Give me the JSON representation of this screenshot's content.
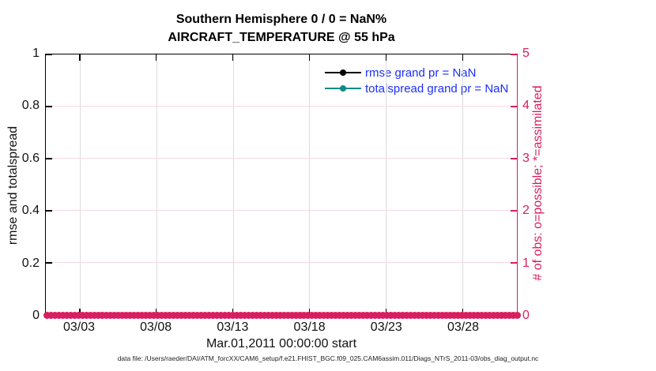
{
  "header": {
    "title_line1": "Southern Hemisphere 0 / 0 = NaN%",
    "title_line2": "AIRCRAFT_TEMPERATURE @ 55 hPa"
  },
  "axes": {
    "x": {
      "tick_labels": [
        "03/03",
        "03/08",
        "03/13",
        "03/18",
        "03/23",
        "03/28"
      ],
      "label": "Mar.01,2011 00:00:00 start"
    },
    "y_left": {
      "tick_labels": [
        "0",
        "0.2",
        "0.4",
        "0.6",
        "0.8",
        "1"
      ],
      "label": "rmse and totalspread",
      "range": [
        0,
        1
      ]
    },
    "y_right": {
      "tick_labels": [
        "0",
        "1",
        "2",
        "3",
        "4",
        "5"
      ],
      "label": "# of obs: o=possible; *=assimilated",
      "range": [
        0,
        5
      ]
    }
  },
  "legend": {
    "text_color": "#1b2eff",
    "items": [
      {
        "label": "rmse grand pr = NaN",
        "color": "#000000",
        "marker": "filled-circle"
      },
      {
        "label": "totalspread grand pr = NaN",
        "color": "#0e8b86",
        "marker": "filled-circle"
      }
    ]
  },
  "footer": {
    "text": "data file: /Users/raeder/DAI/ATM_forcXX/CAM6_setup/f.e21.FHIST_BGC.f09_025.CAM6assim.011/Diags_NTrS_2011-03/obs_diag_output.nc"
  },
  "colors": {
    "obs_axis": "#d91e5f",
    "grid_vertical": "#dcdcdc",
    "grid_horizontal": "#f8d9e4",
    "axis_black": "#000000"
  },
  "chart_data": {
    "type": "line",
    "title": "Southern Hemisphere 0 / 0 = NaN%  |  AIRCRAFT_TEMPERATURE @ 55 hPa",
    "xlabel": "Mar.01,2011 00:00:00 start",
    "x_start": "2011-03-01 00:00:00",
    "x_tick_labels": [
      "03/03",
      "03/08",
      "03/13",
      "03/18",
      "03/23",
      "03/28"
    ],
    "y_left": {
      "label": "rmse and totalspread",
      "range": [
        0,
        1
      ],
      "ticks": [
        0,
        0.2,
        0.4,
        0.6,
        0.8,
        1
      ]
    },
    "y_right": {
      "label": "# of obs: o=possible; *=assimilated",
      "range": [
        0,
        5
      ],
      "ticks": [
        0,
        1,
        2,
        3,
        4,
        5
      ]
    },
    "grid": true,
    "legend_position": "inside-top-right",
    "series": [
      {
        "name": "rmse",
        "axis": "left",
        "color": "#000000",
        "marker": "filled-circle",
        "grand_pr": "NaN",
        "values": "all NaN (nothing plotted)"
      },
      {
        "name": "totalspread",
        "axis": "left",
        "color": "#0e8b86",
        "marker": "filled-circle",
        "grand_pr": "NaN",
        "values": "all NaN (nothing plotted)"
      },
      {
        "name": "# of obs possible (o)",
        "axis": "right",
        "color": "#d91e5f",
        "marker": "o",
        "constant_value": 0,
        "extent": "entire x range Mar 01 - Mar 31"
      },
      {
        "name": "# of obs assimilated (*)",
        "axis": "right",
        "color": "#d91e5f",
        "marker": "*",
        "constant_value": 0,
        "extent": "entire x range Mar 01 - Mar 31"
      }
    ]
  }
}
